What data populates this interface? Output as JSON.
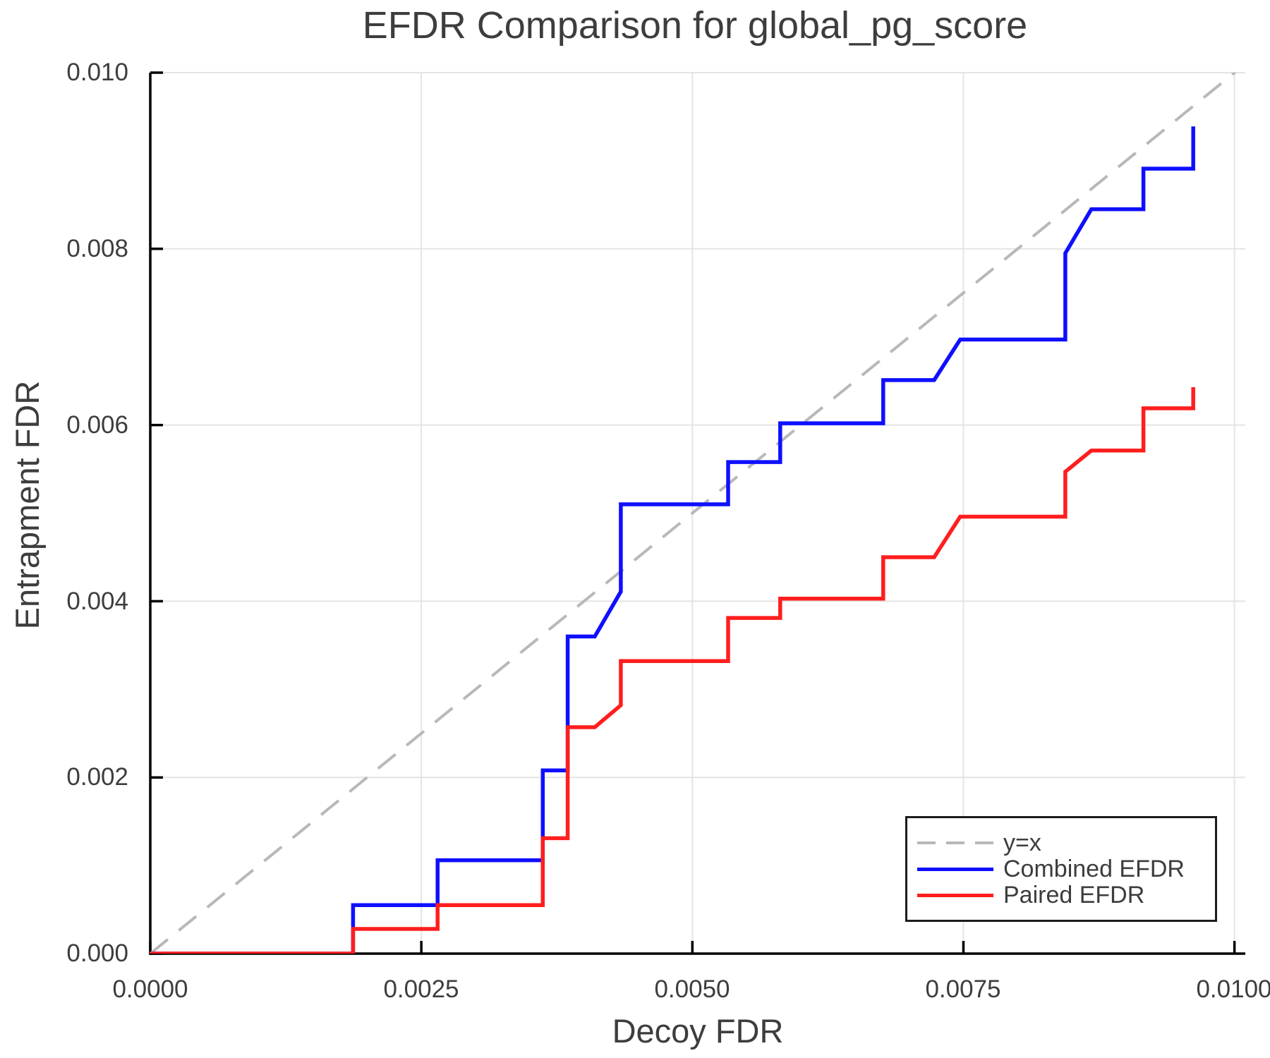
{
  "page": {
    "background": "#ffffff"
  },
  "chart_data": {
    "type": "line",
    "title": "EFDR Comparison for global_pg_score",
    "xlabel": "Decoy FDR",
    "ylabel": "Entrapment FDR",
    "xlim": [
      0,
      0.0101
    ],
    "ylim": [
      0,
      0.01
    ],
    "x_ticks": [
      0,
      0.0025,
      0.005,
      0.0075,
      0.01
    ],
    "x_tick_labels": [
      "0.0000",
      "0.0025",
      "0.0050",
      "0.0075",
      "0.0100"
    ],
    "y_ticks": [
      0,
      0.002,
      0.004,
      0.006,
      0.008,
      0.01
    ],
    "y_tick_labels": [
      "0.000",
      "0.002",
      "0.004",
      "0.006",
      "0.008",
      "0.010"
    ],
    "grid": true,
    "tick_direction": "in",
    "legend_position": "lower right",
    "colors": {
      "grid": "#e4e4e4",
      "axis": "#000000",
      "text": "#3d3d3d",
      "background": "#ffffff"
    },
    "series": [
      {
        "name": "y=x",
        "style": "dashed",
        "color": "#b8b8b8",
        "width": 4,
        "points": [
          [
            0,
            0
          ],
          [
            0.0101,
            0.0101
          ]
        ]
      },
      {
        "name": "Combined EFDR",
        "style": "solid",
        "color": "#0f0fff",
        "width": 5.5,
        "points": [
          [
            0,
            0
          ],
          [
            0.00187,
            0
          ],
          [
            0.00187,
            0.00055
          ],
          [
            0.00265,
            0.00055
          ],
          [
            0.00265,
            0.00106
          ],
          [
            0.00362,
            0.00106
          ],
          [
            0.00362,
            0.00208
          ],
          [
            0.00385,
            0.00208
          ],
          [
            0.00385,
            0.0036
          ],
          [
            0.0041,
            0.0036
          ],
          [
            0.00434,
            0.00411
          ],
          [
            0.00434,
            0.0051
          ],
          [
            0.00533,
            0.0051
          ],
          [
            0.00533,
            0.00558
          ],
          [
            0.00581,
            0.00558
          ],
          [
            0.00581,
            0.00602
          ],
          [
            0.00676,
            0.00602
          ],
          [
            0.00676,
            0.00651
          ],
          [
            0.00723,
            0.00651
          ],
          [
            0.00747,
            0.00697
          ],
          [
            0.00844,
            0.00697
          ],
          [
            0.00844,
            0.00795
          ],
          [
            0.00868,
            0.00845
          ],
          [
            0.00916,
            0.00845
          ],
          [
            0.00916,
            0.00891
          ],
          [
            0.00962,
            0.00891
          ],
          [
            0.00962,
            0.00939
          ]
        ]
      },
      {
        "name": "Paired EFDR",
        "style": "solid",
        "color": "#ff1e1e",
        "width": 5.5,
        "points": [
          [
            0,
            0
          ],
          [
            0.00187,
            0
          ],
          [
            0.00187,
            0.00028
          ],
          [
            0.00265,
            0.00028
          ],
          [
            0.00265,
            0.00055
          ],
          [
            0.00362,
            0.00055
          ],
          [
            0.00362,
            0.00131
          ],
          [
            0.00385,
            0.00131
          ],
          [
            0.00385,
            0.00257
          ],
          [
            0.0041,
            0.00257
          ],
          [
            0.00434,
            0.00282
          ],
          [
            0.00434,
            0.00332
          ],
          [
            0.00533,
            0.00332
          ],
          [
            0.00533,
            0.00381
          ],
          [
            0.00581,
            0.00381
          ],
          [
            0.00581,
            0.00403
          ],
          [
            0.00676,
            0.00403
          ],
          [
            0.00676,
            0.0045
          ],
          [
            0.00723,
            0.0045
          ],
          [
            0.00747,
            0.00496
          ],
          [
            0.00844,
            0.00496
          ],
          [
            0.00844,
            0.00547
          ],
          [
            0.00868,
            0.00571
          ],
          [
            0.00916,
            0.00571
          ],
          [
            0.00916,
            0.00619
          ],
          [
            0.00962,
            0.00619
          ],
          [
            0.00962,
            0.00643
          ]
        ]
      }
    ]
  }
}
